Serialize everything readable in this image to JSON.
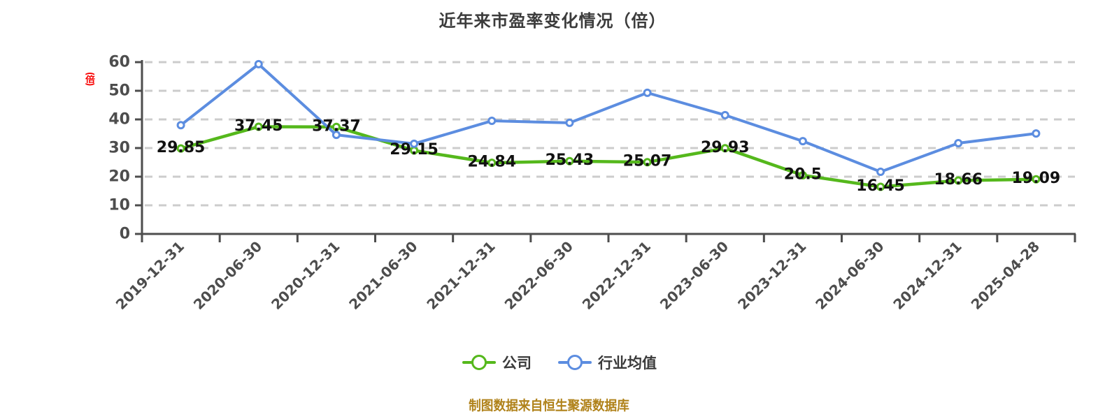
{
  "title": "近年来市盈率变化情况（倍）",
  "y_axis_name": "(倍)",
  "footer": "制图数据来自恒生聚源数据库",
  "colors": {
    "company_green": "#55B81C",
    "industry_blue": "#5C8DE0",
    "axis": "#4d4d4d",
    "gridline": "#cccccc",
    "data_label": "#111111",
    "axis_name_red": "#F80000",
    "footer_gold": "#B0821A",
    "title_text": "#3c3c3c"
  },
  "legend": {
    "items": [
      {
        "label": "公司"
      },
      {
        "label": "行业均值"
      }
    ]
  },
  "chart_data": {
    "type": "line",
    "title": "近年来市盈率变化情况（倍）",
    "categories": [
      "2019-12-31",
      "2020-06-30",
      "2020-12-31",
      "2021-06-30",
      "2021-12-31",
      "2022-06-30",
      "2022-12-31",
      "2023-06-30",
      "2023-12-31",
      "2024-06-30",
      "2024-12-31",
      "2025-04-28"
    ],
    "series": [
      {
        "name": "公司",
        "color": "#55B81C",
        "values": [
          29.85,
          37.45,
          37.37,
          29.15,
          24.84,
          25.43,
          25.07,
          29.93,
          20.5,
          16.45,
          18.66,
          19.09
        ],
        "point_labels_visible": true
      },
      {
        "name": "行业均值",
        "color": "#5C8DE0",
        "values": [
          38.0,
          59.3,
          34.6,
          31.5,
          39.5,
          38.8,
          49.3,
          41.5,
          32.4,
          21.7,
          31.7,
          35.1
        ],
        "point_labels_visible": false
      }
    ],
    "ylabel": "(倍)",
    "xlabel": "",
    "ylim": [
      0,
      60
    ],
    "ytick_step": 10,
    "grid": "horizontal dashed",
    "legend_position": "bottom",
    "x_label_rotation": -45
  }
}
